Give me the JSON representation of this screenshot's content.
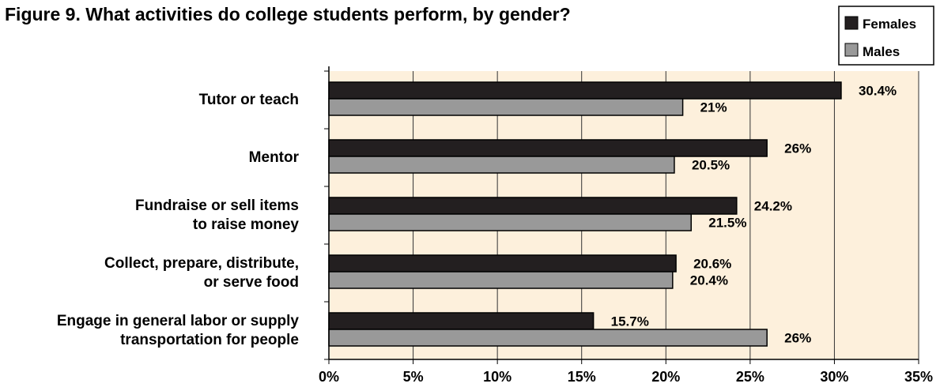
{
  "chart_data": {
    "type": "bar",
    "orientation": "horizontal",
    "title": "Figure 9. What activities do college students perform, by gender?",
    "categories": [
      [
        "Tutor or teach"
      ],
      [
        "Mentor"
      ],
      [
        "Fundraise or sell items",
        "to raise money"
      ],
      [
        "Collect, prepare, distribute,",
        "or serve food"
      ],
      [
        "Engage in general labor or supply",
        "transportation for people"
      ]
    ],
    "series": [
      {
        "name": "Females",
        "values": [
          30.4,
          26,
          24.2,
          20.6,
          15.7
        ],
        "labels": [
          "30.4%",
          "26%",
          "24.2%",
          "20.6%",
          "15.7%"
        ],
        "color": "#231f20"
      },
      {
        "name": "Males",
        "values": [
          21,
          20.5,
          21.5,
          20.4,
          26
        ],
        "labels": [
          "21%",
          "20.5%",
          "21.5%",
          "20.4%",
          "26%"
        ],
        "color": "#999999"
      }
    ],
    "xlim": [
      0,
      35
    ],
    "xticks": [
      "0%",
      "5%",
      "10%",
      "15%",
      "20%",
      "25%",
      "30%",
      "35%"
    ],
    "xlabel": "",
    "ylabel": "",
    "grid": true,
    "plot_background": "#fdf0dc",
    "legend_position": "top-right"
  }
}
